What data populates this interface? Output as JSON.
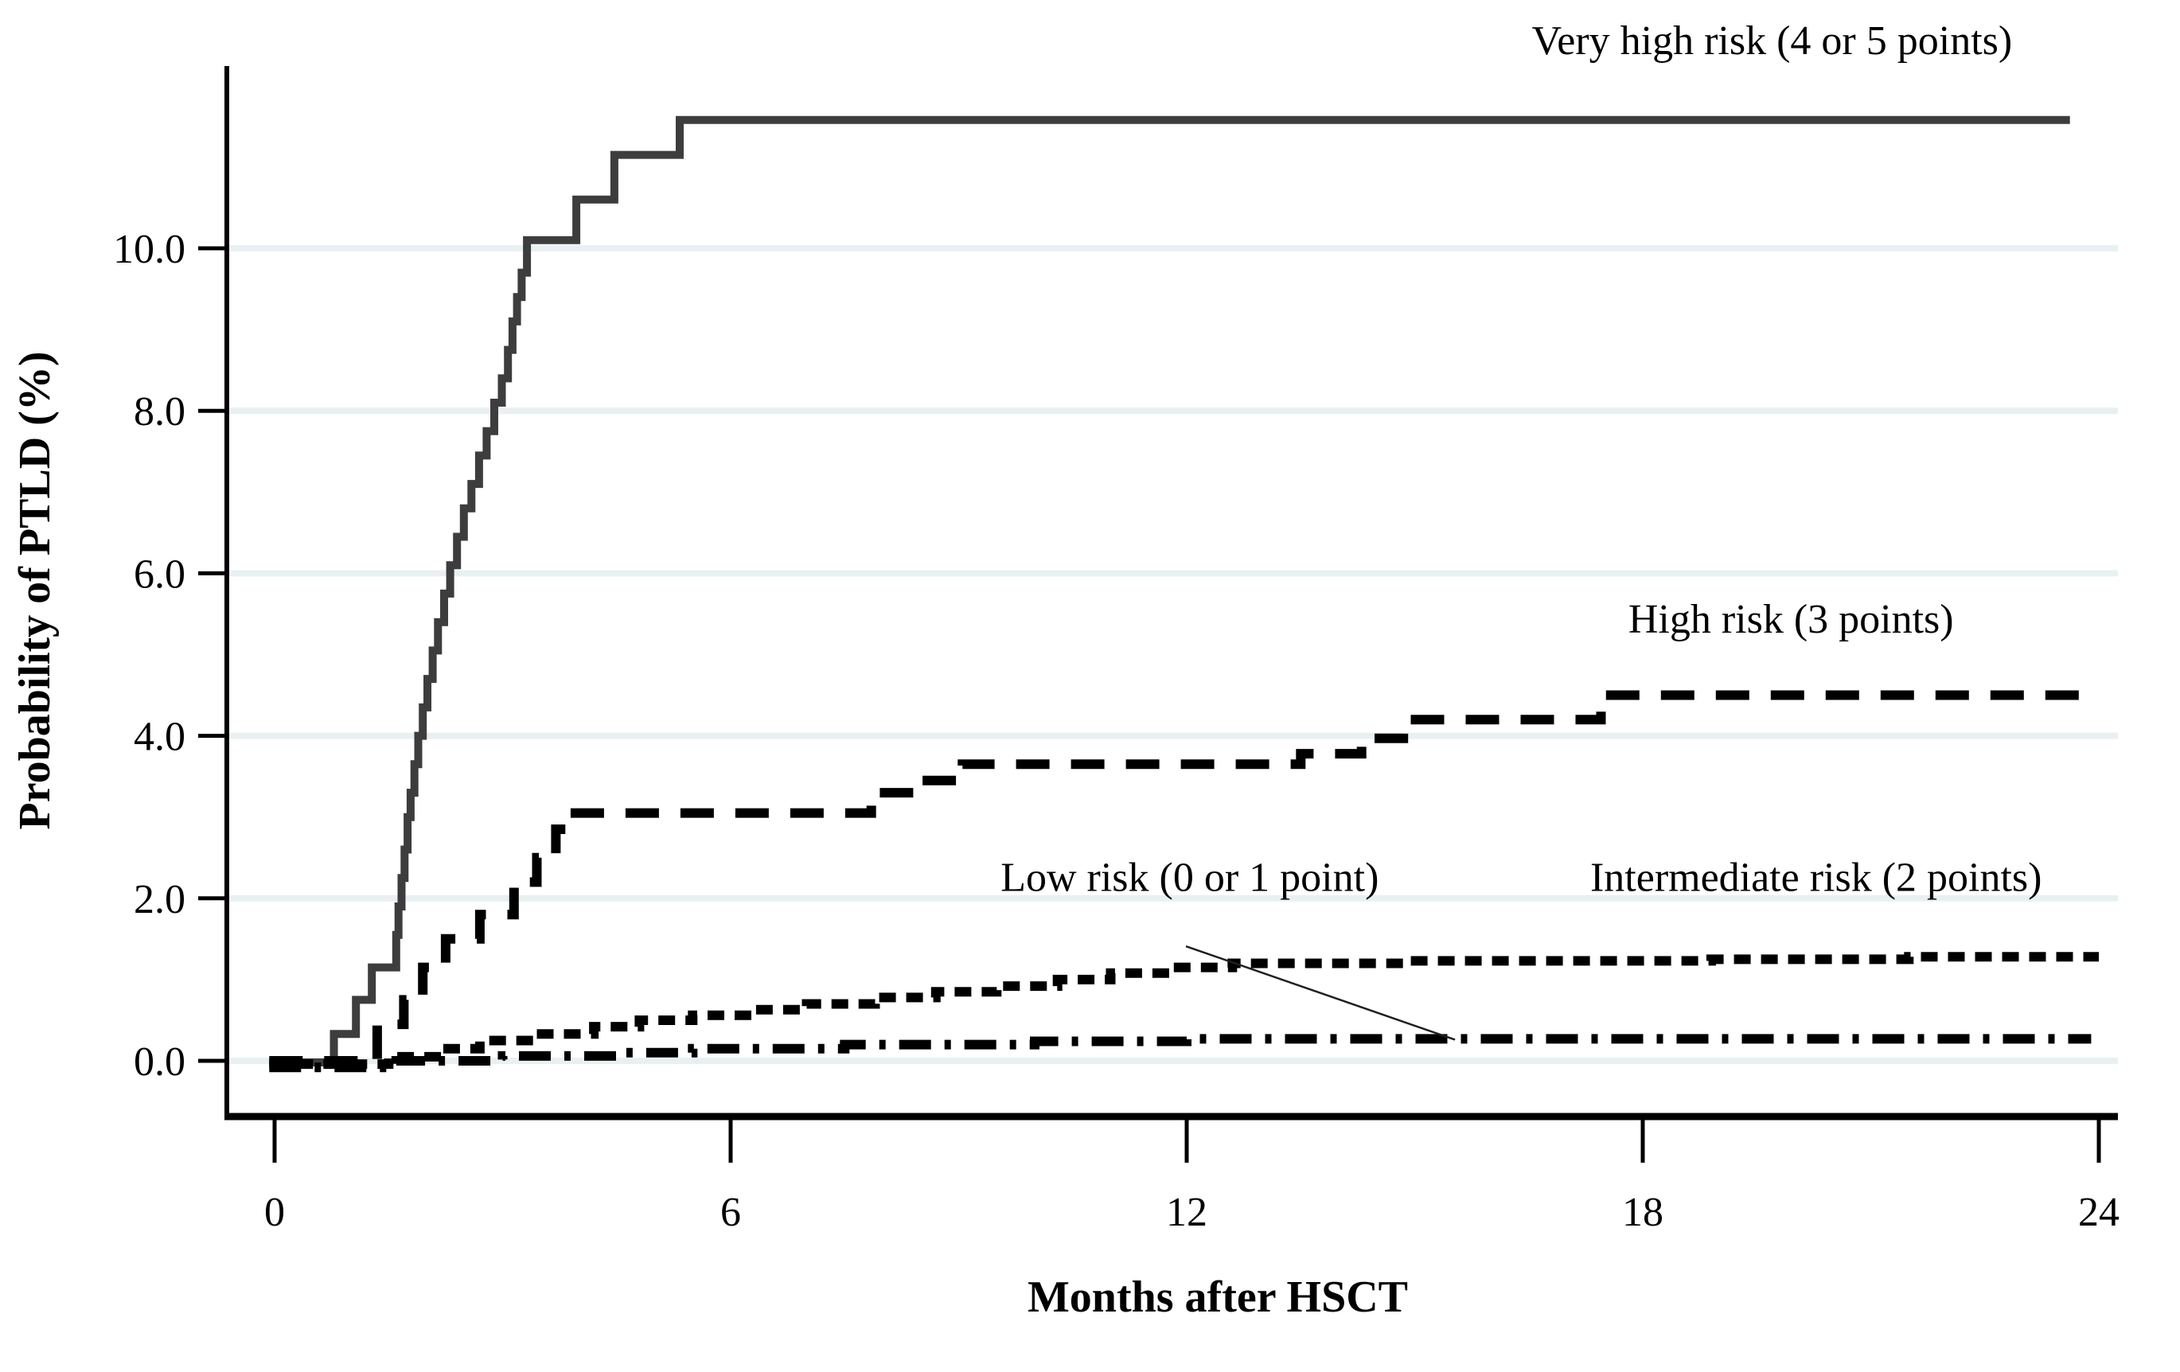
{
  "chart_data": {
    "type": "line",
    "subtype": "cumulative-incidence-step-curves",
    "title": "",
    "xlabel": "Months after HSCT",
    "ylabel": "Probability of PTLD (%)",
    "xlim": [
      -0.65,
      24.3
    ],
    "ylim": [
      -0.68,
      12.25
    ],
    "grid": "horizontal, very light, at every y tick",
    "legend_position": "inline labels next to curves",
    "x_ticks": [
      {
        "value": 0,
        "label": "0"
      },
      {
        "value": 6,
        "label": "6"
      },
      {
        "value": 12,
        "label": "12"
      },
      {
        "value": 18,
        "label": "18"
      },
      {
        "value": 24,
        "label": "24"
      }
    ],
    "y_ticks": [
      {
        "value": 0,
        "label": "0.0"
      },
      {
        "value": 2,
        "label": "2.0"
      },
      {
        "value": 4,
        "label": "4.0"
      },
      {
        "value": 6,
        "label": "6.0"
      },
      {
        "value": 8,
        "label": "8.0"
      },
      {
        "value": 10,
        "label": "10.0"
      }
    ],
    "series": [
      {
        "id": "very_high",
        "label": "Very high risk (4 or 5 points)",
        "style": "solid",
        "color": "#3d3d3d",
        "stroke_width": 10,
        "dash": "",
        "label_anchor": {
          "x": 19.7,
          "y": 12.39
        },
        "end_month": 23.62,
        "final_value": 11.58,
        "steps": [
          [
            -0.07,
            -0.02
          ],
          [
            0.78,
            0.33
          ],
          [
            1.07,
            0.75
          ],
          [
            1.28,
            1.15
          ],
          [
            1.6,
            1.55
          ],
          [
            1.63,
            1.9
          ],
          [
            1.67,
            2.25
          ],
          [
            1.71,
            2.6
          ],
          [
            1.75,
            3.0
          ],
          [
            1.79,
            3.3
          ],
          [
            1.84,
            3.65
          ],
          [
            1.89,
            4.0
          ],
          [
            1.95,
            4.35
          ],
          [
            2.01,
            4.7
          ],
          [
            2.08,
            5.05
          ],
          [
            2.15,
            5.4
          ],
          [
            2.23,
            5.75
          ],
          [
            2.31,
            6.1
          ],
          [
            2.4,
            6.45
          ],
          [
            2.49,
            6.8
          ],
          [
            2.59,
            7.1
          ],
          [
            2.69,
            7.45
          ],
          [
            2.79,
            7.75
          ],
          [
            2.89,
            8.1
          ],
          [
            2.99,
            8.4
          ],
          [
            3.07,
            8.75
          ],
          [
            3.13,
            9.1
          ],
          [
            3.19,
            9.4
          ],
          [
            3.25,
            9.7
          ],
          [
            3.32,
            10.1
          ],
          [
            3.97,
            10.6
          ],
          [
            4.47,
            11.15
          ],
          [
            5.33,
            11.58
          ]
        ]
      },
      {
        "id": "high",
        "label": "High risk (3 points)",
        "style": "dashed",
        "color": "#000000",
        "stroke_width": 12,
        "dash": "42 27",
        "label_anchor": {
          "x": 19.95,
          "y": 5.27
        },
        "end_month": 23.8,
        "final_value": 4.5,
        "steps": [
          [
            -0.07,
            0.0
          ],
          [
            1.35,
            0.45
          ],
          [
            1.7,
            0.75
          ],
          [
            1.95,
            1.15
          ],
          [
            2.25,
            1.5
          ],
          [
            2.7,
            1.8
          ],
          [
            3.15,
            2.2
          ],
          [
            3.45,
            2.5
          ],
          [
            3.7,
            2.85
          ],
          [
            3.85,
            3.05
          ],
          [
            7.85,
            3.3
          ],
          [
            8.45,
            3.45
          ],
          [
            9.05,
            3.65
          ],
          [
            13.5,
            3.78
          ],
          [
            14.3,
            3.97
          ],
          [
            14.85,
            4.2
          ],
          [
            17.45,
            4.5
          ]
        ]
      },
      {
        "id": "intermediate",
        "label": "Intermediate risk (2 points)",
        "style": "fine-dashed",
        "color": "#000000",
        "stroke_width": 12,
        "dash": "21 13",
        "label_anchor": {
          "x": 20.28,
          "y": 2.09
        },
        "end_month": 24.0,
        "final_value": 1.28,
        "steps": [
          [
            -0.07,
            -0.04
          ],
          [
            1.5,
            0.05
          ],
          [
            2.2,
            0.15
          ],
          [
            2.7,
            0.25
          ],
          [
            3.4,
            0.33
          ],
          [
            4.2,
            0.42
          ],
          [
            4.8,
            0.5
          ],
          [
            5.5,
            0.56
          ],
          [
            6.3,
            0.63
          ],
          [
            7.0,
            0.7
          ],
          [
            7.9,
            0.78
          ],
          [
            8.7,
            0.85
          ],
          [
            9.5,
            0.92
          ],
          [
            10.3,
            1.0
          ],
          [
            11.0,
            1.08
          ],
          [
            11.8,
            1.15
          ],
          [
            12.6,
            1.2
          ],
          [
            14.9,
            1.23
          ],
          [
            18.9,
            1.25
          ],
          [
            21.5,
            1.28
          ]
        ]
      },
      {
        "id": "low",
        "label": "Low risk (0 or 1 point)",
        "style": "dash-dot",
        "color": "#000000",
        "stroke_width": 12,
        "dash": "40 17 8 17",
        "label_anchor": {
          "x": 12.04,
          "y": 2.09
        },
        "end_month": 23.9,
        "final_value": 0.27,
        "steps": [
          [
            -0.07,
            -0.08
          ],
          [
            1.6,
            0.0
          ],
          [
            3.0,
            0.06
          ],
          [
            4.5,
            0.1
          ],
          [
            5.5,
            0.15
          ],
          [
            7.5,
            0.2
          ],
          [
            10.0,
            0.24
          ],
          [
            12.0,
            0.27
          ]
        ]
      }
    ],
    "annotation": {
      "type": "pointer-line",
      "description": "thin line connecting Low risk label to dash-dot curve",
      "from": {
        "x": 11.99,
        "y": 1.41
      },
      "to": {
        "x": 15.53,
        "y": 0.26
      },
      "color": "#1f1f1f",
      "width": 2.5
    },
    "colors": {
      "background": "#ffffff",
      "axis": "#000000",
      "gridline": "#e9f0f2",
      "very_high_curve": "#3d3d3d",
      "black_curves": "#000000"
    }
  }
}
